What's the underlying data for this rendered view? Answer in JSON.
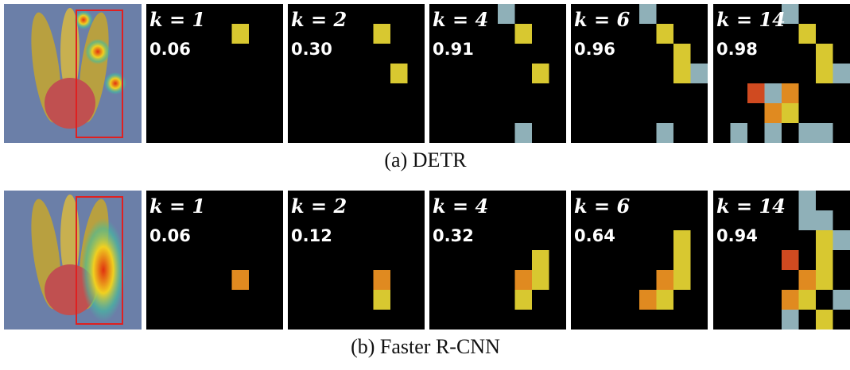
{
  "rows": [
    {
      "caption": "(a) DETR",
      "panels": [
        {
          "k": "k = 1",
          "score": "0.06"
        },
        {
          "k": "k = 2",
          "score": "0.30"
        },
        {
          "k": "k = 4",
          "score": "0.91"
        },
        {
          "k": "k = 6",
          "score": "0.96"
        },
        {
          "k": "k = 14",
          "score": "0.98"
        }
      ]
    },
    {
      "caption": "(b) Faster R-CNN",
      "panels": [
        {
          "k": "k = 1",
          "score": "0.06"
        },
        {
          "k": "k = 2",
          "score": "0.12"
        },
        {
          "k": "k = 4",
          "score": "0.32"
        },
        {
          "k": "k = 6",
          "score": "0.64"
        },
        {
          "k": "k = 14",
          "score": "0.94"
        }
      ]
    }
  ]
}
